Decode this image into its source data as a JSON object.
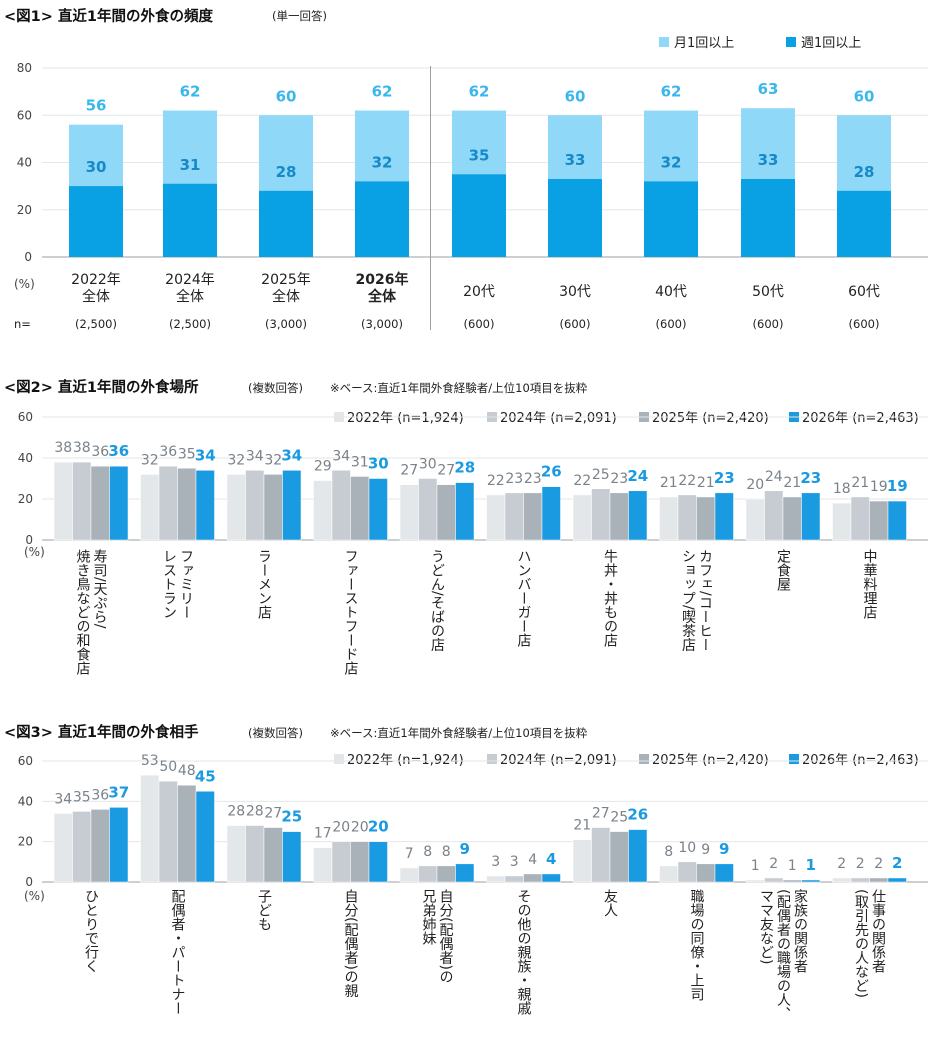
{
  "colors": {
    "month": "#8fd8f8",
    "week": "#0aa0e4",
    "label_month": "#3ab8ee",
    "label_week": "#1689c8",
    "y2022": "#e4e7ea",
    "y2024": "#c6ccd2",
    "y2025": "#a9b1b9",
    "y2026": "#1a9ae0",
    "grey_label": "#7a828a",
    "blue_label": "#1a9ae0"
  },
  "charts": [
    {
      "title": "<図1> 直近1年間の外食の頻度",
      "subtitle": "(単一回答)",
      "unit_label": "(%)",
      "n_prefix": "n=",
      "legend": [
        "月1回以上",
        "週1回以上"
      ]
    },
    {
      "title": "<図2> 直近1年間の外食場所",
      "subtitle": "(複数回答)",
      "note": "※ベース:直近1年間外食経験者/上位10項目を抜粋",
      "unit_label": "(%)",
      "legend": [
        "2022年 (n=1,924)",
        "2024年 (n=2,091)",
        "2025年 (n=2,420)",
        "2026年 (n=2,463)"
      ]
    },
    {
      "title": "<図3> 直近1年間の外食相手",
      "subtitle": "(複数回答)",
      "note": "※ベース:直近1年間外食経験者/上位10項目を抜粋",
      "unit_label": "(%)",
      "legend": [
        "2022年 (n=1,924)",
        "2024年 (n=2,091)",
        "2025年 (n=2,420)",
        "2026年 (n=2,463)"
      ]
    }
  ],
  "chart_data": [
    {
      "type": "bar",
      "stacked_overlay": true,
      "categories": [
        [
          "2022年",
          "全体"
        ],
        [
          "2024年",
          "全体"
        ],
        [
          "2025年",
          "全体"
        ],
        [
          "2026年",
          "全体"
        ],
        [
          "20代"
        ],
        [
          "30代"
        ],
        [
          "40代"
        ],
        [
          "50代"
        ],
        [
          "60代"
        ]
      ],
      "bold_category_index": 3,
      "n_values": [
        "(2,500)",
        "(2,500)",
        "(3,000)",
        "(3,000)",
        "(600)",
        "(600)",
        "(600)",
        "(600)",
        "(600)"
      ],
      "series": [
        {
          "name": "月1回以上",
          "values": [
            56,
            62,
            60,
            62,
            62,
            60,
            62,
            63,
            60
          ]
        },
        {
          "name": "週1回以上",
          "values": [
            30,
            31,
            28,
            32,
            35,
            33,
            32,
            33,
            28
          ]
        }
      ],
      "ylim": [
        0,
        80
      ],
      "yticks": [
        0,
        20,
        40,
        60,
        80
      ],
      "separator_after_index": 3,
      "legend_position": "top-right"
    },
    {
      "type": "bar",
      "categories": [
        "寿司/天ぷら/焼き鳥などの和食店",
        "ファミリーレストラン",
        "ラーメン店",
        "ファーストフード店",
        "うどん/そばの店",
        "ハンバーガー店",
        "牛丼・丼もの店",
        "カフェ/コーヒーショップ/喫茶店",
        "定食屋",
        "中華料理店"
      ],
      "category_lines": [
        [
          "寿司/天ぷら/",
          "焼き鳥などの和食店"
        ],
        [
          "ファミリー",
          "レストラン"
        ],
        [
          "ラーメン店"
        ],
        [
          "ファーストフード店"
        ],
        [
          "うどん/そばの店"
        ],
        [
          "ハンバーガー店"
        ],
        [
          "牛丼・丼もの店"
        ],
        [
          "カフェ/コーヒー",
          "ショップ/喫茶店"
        ],
        [
          "定食屋"
        ],
        [
          "中華料理店"
        ]
      ],
      "series": [
        {
          "name": "2022年 (n=1,924)",
          "values": [
            38,
            32,
            32,
            29,
            27,
            22,
            22,
            21,
            20,
            18
          ]
        },
        {
          "name": "2024年 (n=2,091)",
          "values": [
            38,
            36,
            34,
            34,
            30,
            23,
            25,
            22,
            24,
            21
          ]
        },
        {
          "name": "2025年 (n=2,420)",
          "values": [
            36,
            35,
            32,
            31,
            27,
            23,
            23,
            21,
            21,
            19
          ]
        },
        {
          "name": "2026年 (n=2,463)",
          "values": [
            36,
            34,
            34,
            30,
            28,
            26,
            24,
            23,
            23,
            19
          ]
        }
      ],
      "ylim": [
        0,
        60
      ],
      "yticks": [
        0,
        20,
        40,
        60
      ],
      "legend_position": "top-right"
    },
    {
      "type": "bar",
      "categories": [
        "ひとりで行く",
        "配偶者・パートナー",
        "子ども",
        "自分(配偶者)の親",
        "自分(配偶者)の兄弟姉妹",
        "その他の親族・親戚",
        "友人",
        "職場の同僚・上司",
        "家族の関係者(配偶者の職場の人、ママ友など)",
        "仕事の関係者(取引先の人など)"
      ],
      "category_lines": [
        [
          "ひとりで行く"
        ],
        [
          "配偶者・パートナー"
        ],
        [
          "子ども"
        ],
        [
          "自分(配偶者)の親"
        ],
        [
          "自分(配偶者)の",
          "兄弟姉妹"
        ],
        [
          "その他の親族・親戚"
        ],
        [
          "友人"
        ],
        [
          "職場の同僚・上司"
        ],
        [
          "家族の関係者",
          "(配偶者の職場の人、",
          "ママ友など)"
        ],
        [
          "仕事の関係者",
          "(取引先の人など)"
        ]
      ],
      "series": [
        {
          "name": "2022年 (n=1,924)",
          "values": [
            34,
            53,
            28,
            17,
            7,
            3,
            21,
            8,
            1,
            2
          ]
        },
        {
          "name": "2024年 (n=2,091)",
          "values": [
            35,
            50,
            28,
            20,
            8,
            3,
            27,
            10,
            2,
            2
          ]
        },
        {
          "name": "2025年 (n=2,420)",
          "values": [
            36,
            48,
            27,
            20,
            8,
            4,
            25,
            9,
            1,
            2
          ]
        },
        {
          "name": "2026年 (n=2,463)",
          "values": [
            37,
            45,
            25,
            20,
            9,
            4,
            26,
            9,
            1,
            2
          ]
        }
      ],
      "ylim": [
        0,
        60
      ],
      "yticks": [
        0,
        20,
        40,
        60
      ],
      "legend_position": "top-right"
    }
  ]
}
